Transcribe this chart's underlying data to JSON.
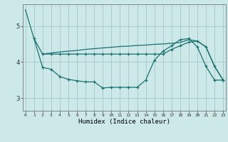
{
  "xlabel": "Humidex (Indice chaleur)",
  "bg_color": "#cce8e8",
  "line_color": "#1a7070",
  "grid_color": "#aacccc",
  "x_ticks": [
    0,
    1,
    2,
    3,
    4,
    5,
    6,
    7,
    8,
    9,
    10,
    11,
    12,
    13,
    14,
    15,
    16,
    17,
    18,
    19,
    20,
    21,
    22,
    23
  ],
  "y_ticks": [
    3,
    4,
    5
  ],
  "ylim": [
    2.65,
    5.6
  ],
  "xlim": [
    -0.3,
    23.3
  ],
  "line1_x": [
    0,
    1,
    2,
    3,
    4,
    5,
    6,
    7,
    8,
    9,
    10,
    11,
    12,
    13,
    14,
    15,
    16,
    17,
    18,
    19,
    20,
    21,
    22,
    23
  ],
  "line1_y": [
    5.45,
    4.65,
    4.22,
    4.25,
    4.28,
    4.3,
    4.32,
    4.35,
    4.37,
    4.39,
    4.41,
    4.43,
    4.44,
    4.46,
    4.47,
    4.49,
    4.5,
    4.52,
    4.54,
    4.62,
    4.58,
    4.42,
    3.88,
    3.5
  ],
  "line2_x": [
    2,
    3,
    4,
    5,
    6,
    7,
    8,
    9,
    10,
    11,
    12,
    13,
    14,
    15,
    16,
    17,
    18,
    19,
    20,
    21,
    22,
    23
  ],
  "line2_y": [
    4.22,
    4.22,
    4.22,
    4.22,
    4.22,
    4.22,
    4.22,
    4.22,
    4.22,
    4.22,
    4.22,
    4.22,
    4.22,
    4.22,
    4.22,
    4.35,
    4.45,
    4.55,
    4.58,
    4.42,
    3.88,
    3.5
  ],
  "line3_x": [
    1,
    2,
    3,
    4,
    5,
    6,
    7,
    8,
    9,
    10,
    11,
    12,
    13,
    14,
    15,
    16,
    17,
    18,
    19,
    20,
    21,
    22,
    23
  ],
  "line3_y": [
    4.65,
    3.85,
    3.8,
    3.6,
    3.52,
    3.48,
    3.45,
    3.45,
    3.28,
    3.3,
    3.3,
    3.3,
    3.3,
    3.5,
    4.05,
    4.3,
    4.45,
    4.62,
    4.65,
    4.42,
    3.88,
    3.5,
    3.5
  ]
}
